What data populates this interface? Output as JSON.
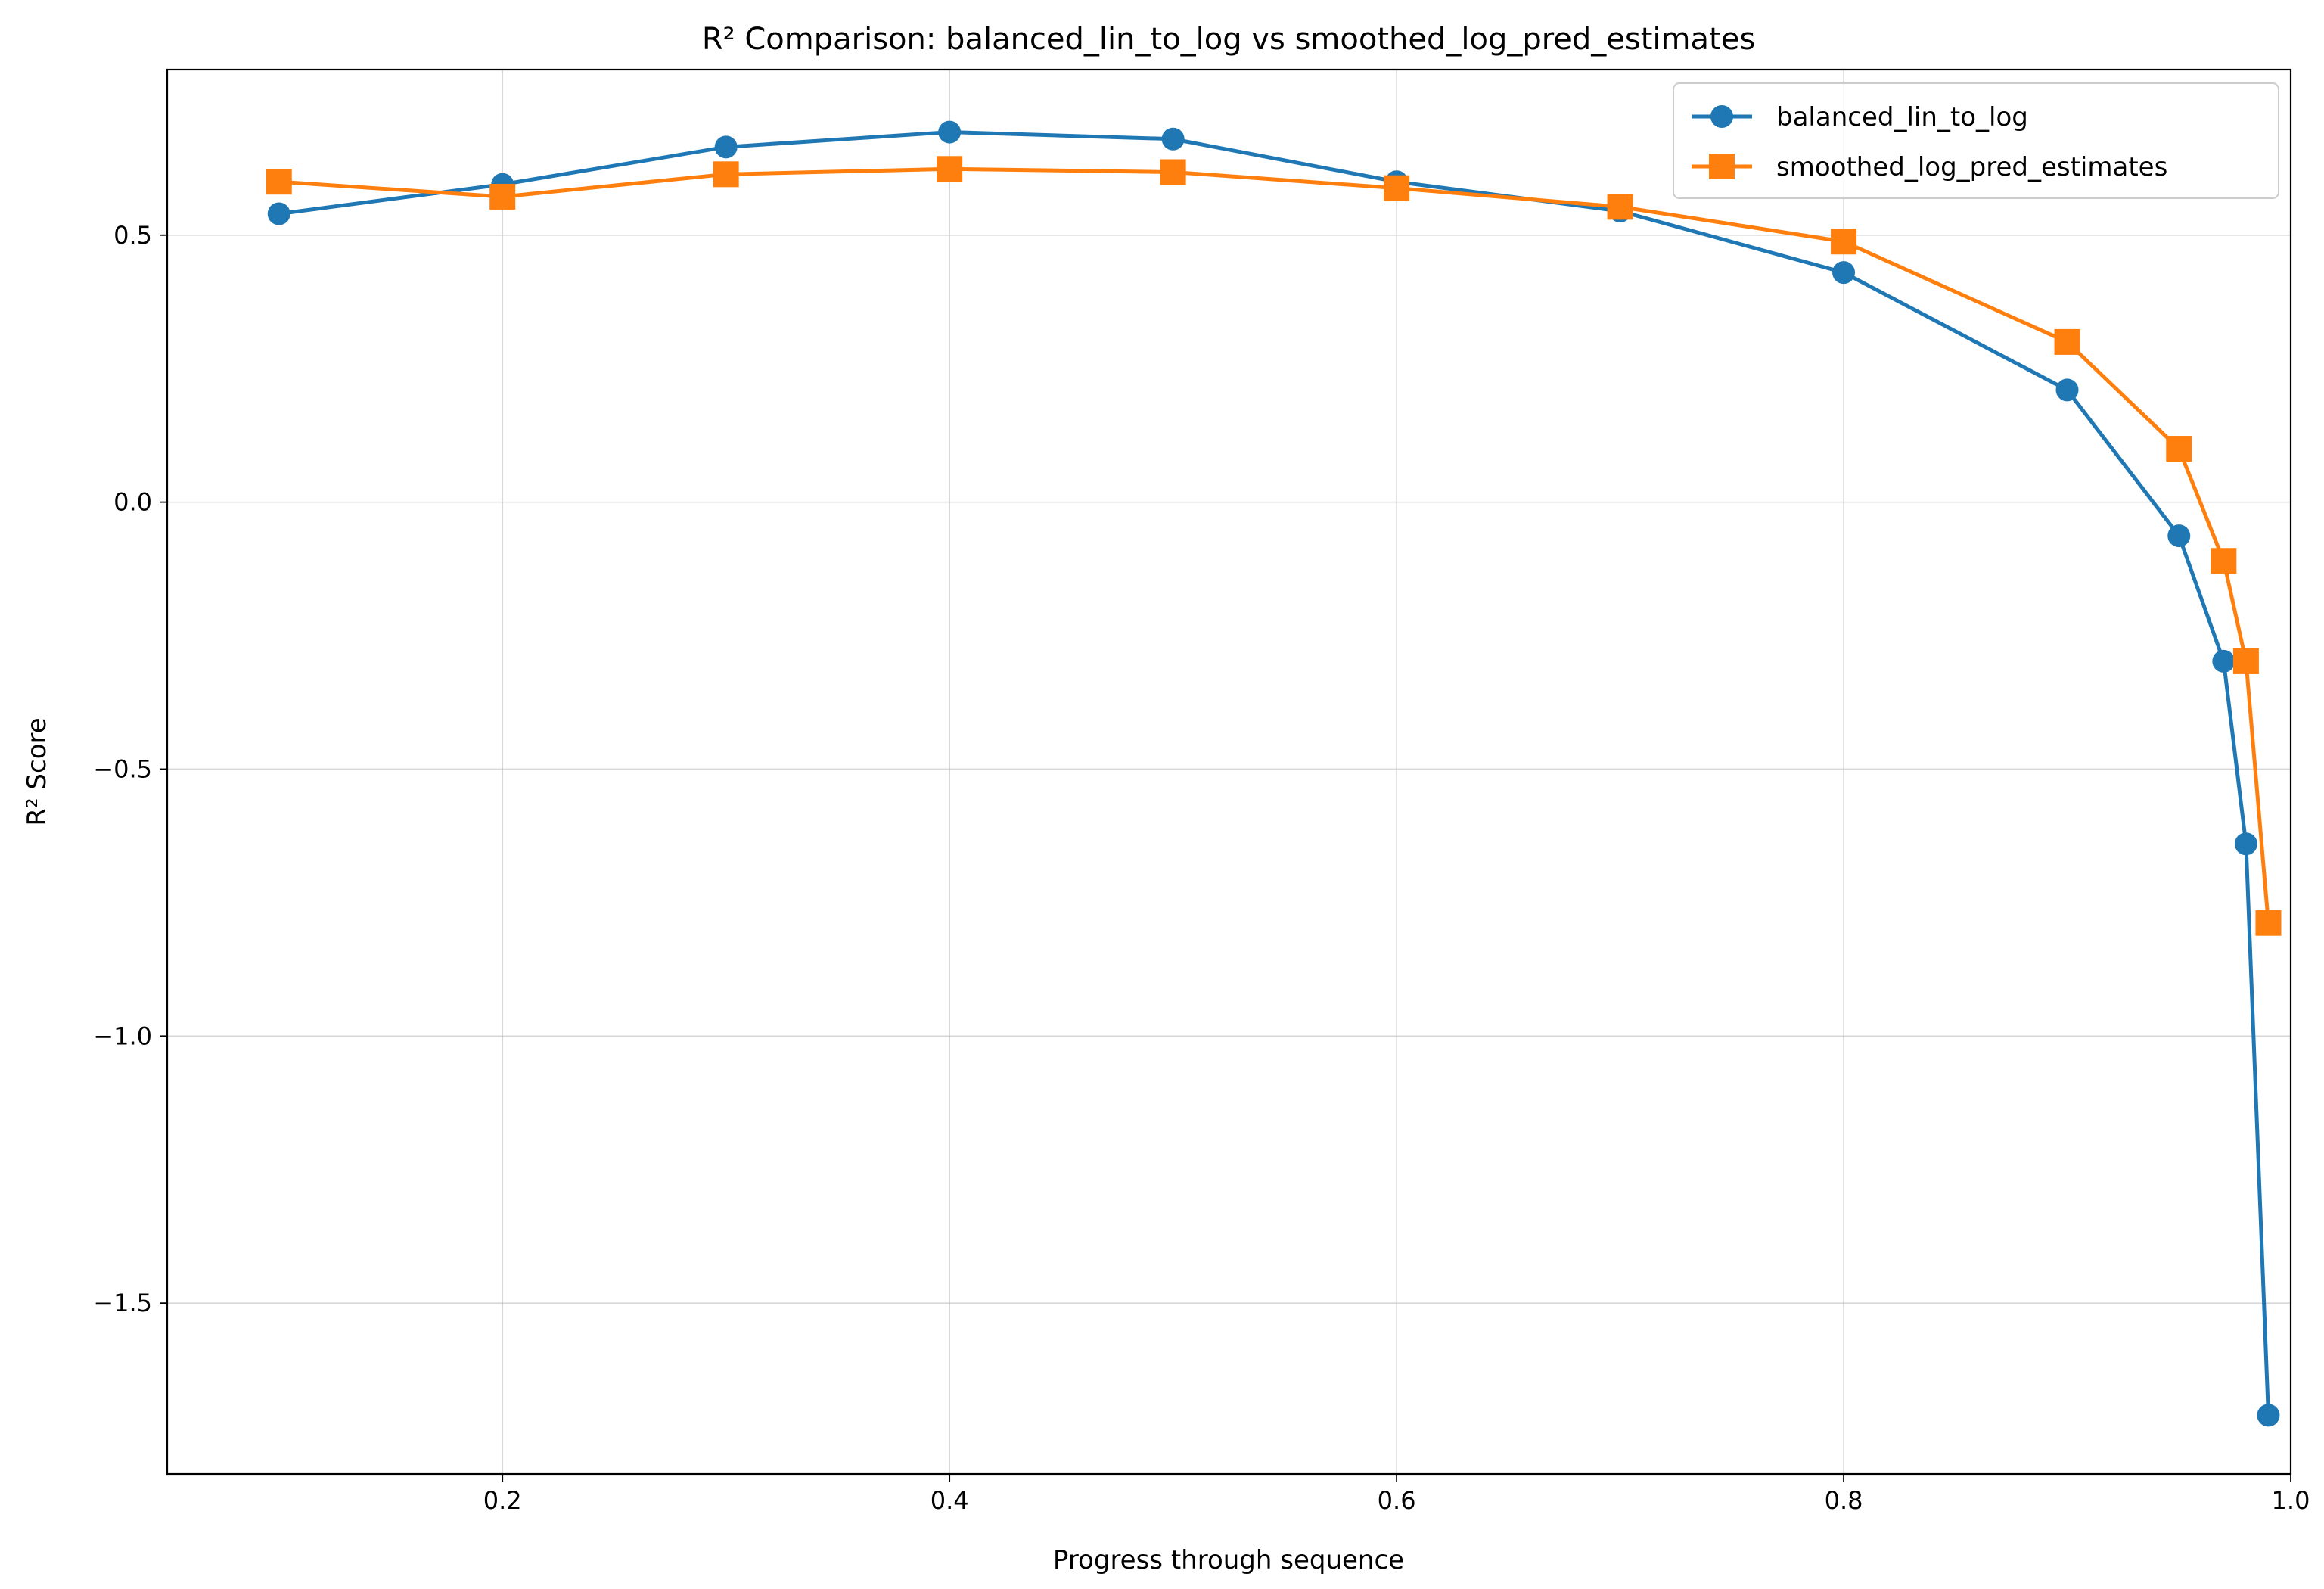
{
  "chart_data": {
    "type": "line",
    "title": "R² Comparison: balanced_lin_to_log vs smoothed_log_pred_estimates",
    "xlabel": "Progress through sequence",
    "ylabel": "R² Score",
    "xlim": [
      0.05,
      1.0
    ],
    "ylim": [
      -1.82,
      0.81
    ],
    "xticks": [
      0.2,
      0.4,
      0.6,
      0.8,
      1.0
    ],
    "xtick_labels": [
      "0.2",
      "0.4",
      "0.6",
      "0.8",
      "1.0"
    ],
    "yticks": [
      -1.5,
      -1.0,
      -0.5,
      0.0,
      0.5
    ],
    "ytick_labels": [
      "−1.5",
      "−1.0",
      "−0.5",
      "0.0",
      "0.5"
    ],
    "grid": true,
    "legend_position": "top-right",
    "x": [
      0.1,
      0.2,
      0.3,
      0.4,
      0.5,
      0.6,
      0.7,
      0.8,
      0.9,
      0.95,
      0.97,
      0.98,
      0.99
    ],
    "series": [
      {
        "name": "balanced_lin_to_log",
        "color": "#1f77b4",
        "marker": "circle",
        "values": [
          0.54,
          0.595,
          0.665,
          0.693,
          0.68,
          0.6,
          0.545,
          0.43,
          0.21,
          -0.063,
          -0.298,
          -0.64,
          -1.71
        ]
      },
      {
        "name": "smoothed_log_pred_estimates",
        "color": "#ff7f0e",
        "marker": "square",
        "values": [
          0.6,
          0.572,
          0.614,
          0.624,
          0.618,
          0.588,
          0.553,
          0.488,
          0.3,
          0.1,
          -0.11,
          -0.298,
          -0.788
        ]
      }
    ]
  }
}
